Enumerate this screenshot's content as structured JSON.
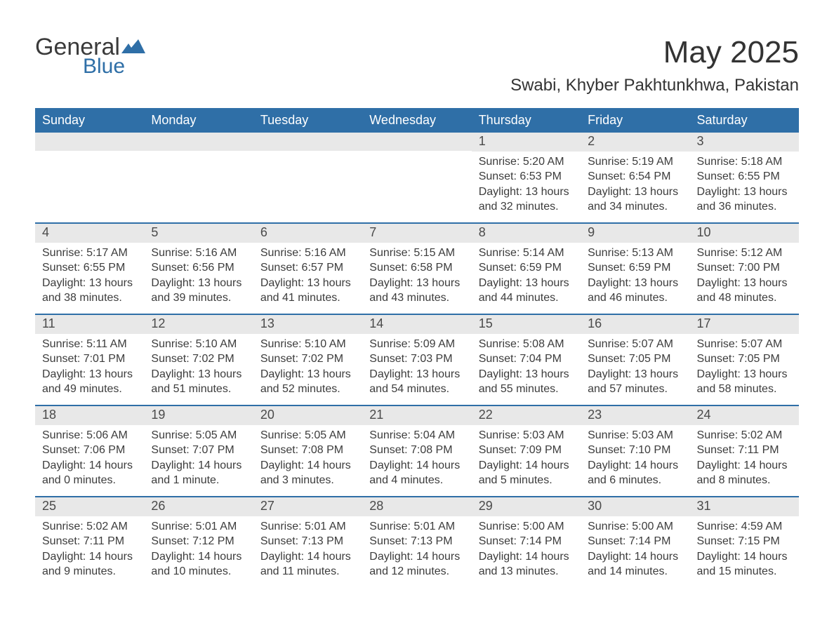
{
  "brand": {
    "word1": "General",
    "word2": "Blue",
    "flag_color": "#2f6fa7",
    "text_gray": "#3a3a3a"
  },
  "header": {
    "month_title": "May 2025",
    "location": "Swabi, Khyber Pakhtunkhwa, Pakistan"
  },
  "colors": {
    "header_bg": "#2f6fa7",
    "header_text": "#ffffff",
    "daynum_bg": "#e8e8e8",
    "body_text": "#3c3c3c",
    "row_divider": "#2f6fa7",
    "page_bg": "#ffffff"
  },
  "weekdays": [
    "Sunday",
    "Monday",
    "Tuesday",
    "Wednesday",
    "Thursday",
    "Friday",
    "Saturday"
  ],
  "weeks": [
    [
      null,
      null,
      null,
      null,
      {
        "n": "1",
        "sunrise": "Sunrise: 5:20 AM",
        "sunset": "Sunset: 6:53 PM",
        "daylight": "Daylight: 13 hours and 32 minutes."
      },
      {
        "n": "2",
        "sunrise": "Sunrise: 5:19 AM",
        "sunset": "Sunset: 6:54 PM",
        "daylight": "Daylight: 13 hours and 34 minutes."
      },
      {
        "n": "3",
        "sunrise": "Sunrise: 5:18 AM",
        "sunset": "Sunset: 6:55 PM",
        "daylight": "Daylight: 13 hours and 36 minutes."
      }
    ],
    [
      {
        "n": "4",
        "sunrise": "Sunrise: 5:17 AM",
        "sunset": "Sunset: 6:55 PM",
        "daylight": "Daylight: 13 hours and 38 minutes."
      },
      {
        "n": "5",
        "sunrise": "Sunrise: 5:16 AM",
        "sunset": "Sunset: 6:56 PM",
        "daylight": "Daylight: 13 hours and 39 minutes."
      },
      {
        "n": "6",
        "sunrise": "Sunrise: 5:16 AM",
        "sunset": "Sunset: 6:57 PM",
        "daylight": "Daylight: 13 hours and 41 minutes."
      },
      {
        "n": "7",
        "sunrise": "Sunrise: 5:15 AM",
        "sunset": "Sunset: 6:58 PM",
        "daylight": "Daylight: 13 hours and 43 minutes."
      },
      {
        "n": "8",
        "sunrise": "Sunrise: 5:14 AM",
        "sunset": "Sunset: 6:59 PM",
        "daylight": "Daylight: 13 hours and 44 minutes."
      },
      {
        "n": "9",
        "sunrise": "Sunrise: 5:13 AM",
        "sunset": "Sunset: 6:59 PM",
        "daylight": "Daylight: 13 hours and 46 minutes."
      },
      {
        "n": "10",
        "sunrise": "Sunrise: 5:12 AM",
        "sunset": "Sunset: 7:00 PM",
        "daylight": "Daylight: 13 hours and 48 minutes."
      }
    ],
    [
      {
        "n": "11",
        "sunrise": "Sunrise: 5:11 AM",
        "sunset": "Sunset: 7:01 PM",
        "daylight": "Daylight: 13 hours and 49 minutes."
      },
      {
        "n": "12",
        "sunrise": "Sunrise: 5:10 AM",
        "sunset": "Sunset: 7:02 PM",
        "daylight": "Daylight: 13 hours and 51 minutes."
      },
      {
        "n": "13",
        "sunrise": "Sunrise: 5:10 AM",
        "sunset": "Sunset: 7:02 PM",
        "daylight": "Daylight: 13 hours and 52 minutes."
      },
      {
        "n": "14",
        "sunrise": "Sunrise: 5:09 AM",
        "sunset": "Sunset: 7:03 PM",
        "daylight": "Daylight: 13 hours and 54 minutes."
      },
      {
        "n": "15",
        "sunrise": "Sunrise: 5:08 AM",
        "sunset": "Sunset: 7:04 PM",
        "daylight": "Daylight: 13 hours and 55 minutes."
      },
      {
        "n": "16",
        "sunrise": "Sunrise: 5:07 AM",
        "sunset": "Sunset: 7:05 PM",
        "daylight": "Daylight: 13 hours and 57 minutes."
      },
      {
        "n": "17",
        "sunrise": "Sunrise: 5:07 AM",
        "sunset": "Sunset: 7:05 PM",
        "daylight": "Daylight: 13 hours and 58 minutes."
      }
    ],
    [
      {
        "n": "18",
        "sunrise": "Sunrise: 5:06 AM",
        "sunset": "Sunset: 7:06 PM",
        "daylight": "Daylight: 14 hours and 0 minutes."
      },
      {
        "n": "19",
        "sunrise": "Sunrise: 5:05 AM",
        "sunset": "Sunset: 7:07 PM",
        "daylight": "Daylight: 14 hours and 1 minute."
      },
      {
        "n": "20",
        "sunrise": "Sunrise: 5:05 AM",
        "sunset": "Sunset: 7:08 PM",
        "daylight": "Daylight: 14 hours and 3 minutes."
      },
      {
        "n": "21",
        "sunrise": "Sunrise: 5:04 AM",
        "sunset": "Sunset: 7:08 PM",
        "daylight": "Daylight: 14 hours and 4 minutes."
      },
      {
        "n": "22",
        "sunrise": "Sunrise: 5:03 AM",
        "sunset": "Sunset: 7:09 PM",
        "daylight": "Daylight: 14 hours and 5 minutes."
      },
      {
        "n": "23",
        "sunrise": "Sunrise: 5:03 AM",
        "sunset": "Sunset: 7:10 PM",
        "daylight": "Daylight: 14 hours and 6 minutes."
      },
      {
        "n": "24",
        "sunrise": "Sunrise: 5:02 AM",
        "sunset": "Sunset: 7:11 PM",
        "daylight": "Daylight: 14 hours and 8 minutes."
      }
    ],
    [
      {
        "n": "25",
        "sunrise": "Sunrise: 5:02 AM",
        "sunset": "Sunset: 7:11 PM",
        "daylight": "Daylight: 14 hours and 9 minutes."
      },
      {
        "n": "26",
        "sunrise": "Sunrise: 5:01 AM",
        "sunset": "Sunset: 7:12 PM",
        "daylight": "Daylight: 14 hours and 10 minutes."
      },
      {
        "n": "27",
        "sunrise": "Sunrise: 5:01 AM",
        "sunset": "Sunset: 7:13 PM",
        "daylight": "Daylight: 14 hours and 11 minutes."
      },
      {
        "n": "28",
        "sunrise": "Sunrise: 5:01 AM",
        "sunset": "Sunset: 7:13 PM",
        "daylight": "Daylight: 14 hours and 12 minutes."
      },
      {
        "n": "29",
        "sunrise": "Sunrise: 5:00 AM",
        "sunset": "Sunset: 7:14 PM",
        "daylight": "Daylight: 14 hours and 13 minutes."
      },
      {
        "n": "30",
        "sunrise": "Sunrise: 5:00 AM",
        "sunset": "Sunset: 7:14 PM",
        "daylight": "Daylight: 14 hours and 14 minutes."
      },
      {
        "n": "31",
        "sunrise": "Sunrise: 4:59 AM",
        "sunset": "Sunset: 7:15 PM",
        "daylight": "Daylight: 14 hours and 15 minutes."
      }
    ]
  ]
}
